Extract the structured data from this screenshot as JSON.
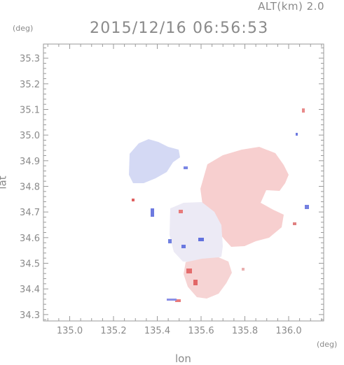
{
  "header": {
    "altitude_label": "ALT(km) 2.0",
    "timestamp": "2015/12/16 06:56:53"
  },
  "axes": {
    "x_unit": "(deg)",
    "y_unit": "(deg)",
    "xlabel": "lon",
    "ylabel": "lat"
  },
  "chart_data": {
    "type": "heatmap",
    "x_ticks": [
      "135.0",
      "135.2",
      "135.4",
      "135.6",
      "135.8",
      "136.0"
    ],
    "y_ticks": [
      "35.3",
      "35.2",
      "35.1",
      "35.0",
      "34.9",
      "34.8",
      "34.7",
      "34.6",
      "34.5",
      "34.4",
      "34.3"
    ],
    "xlim": [
      134.88,
      136.16
    ],
    "ylim": [
      34.275,
      35.355
    ],
    "grid": false,
    "colors": {
      "approaching": "#d0d6f5",
      "receding": "#f6c9c9",
      "neutral": "#eeeef5",
      "strong_approaching": "#5a6be0",
      "strong_receding": "#e86a6a"
    }
  }
}
